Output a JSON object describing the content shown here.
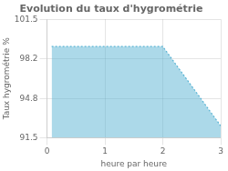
{
  "chart_data": {
    "type": "area",
    "title": "Evolution du taux d'hygrométrie",
    "xlabel": "heure par heure",
    "ylabel": "Taux hygrométrie %",
    "x": [
      0.08,
      2.0,
      3.0
    ],
    "values": [
      99.2,
      99.2,
      92.5
    ],
    "color": "#5ab4d4",
    "line_style": "dotted",
    "xlim": [
      0,
      3
    ],
    "xticks": [
      0,
      1,
      2,
      3
    ],
    "ylim": [
      91.5,
      101.5
    ],
    "yticks": [
      91.5,
      94.8,
      98.2,
      101.5
    ],
    "grid": true
  }
}
